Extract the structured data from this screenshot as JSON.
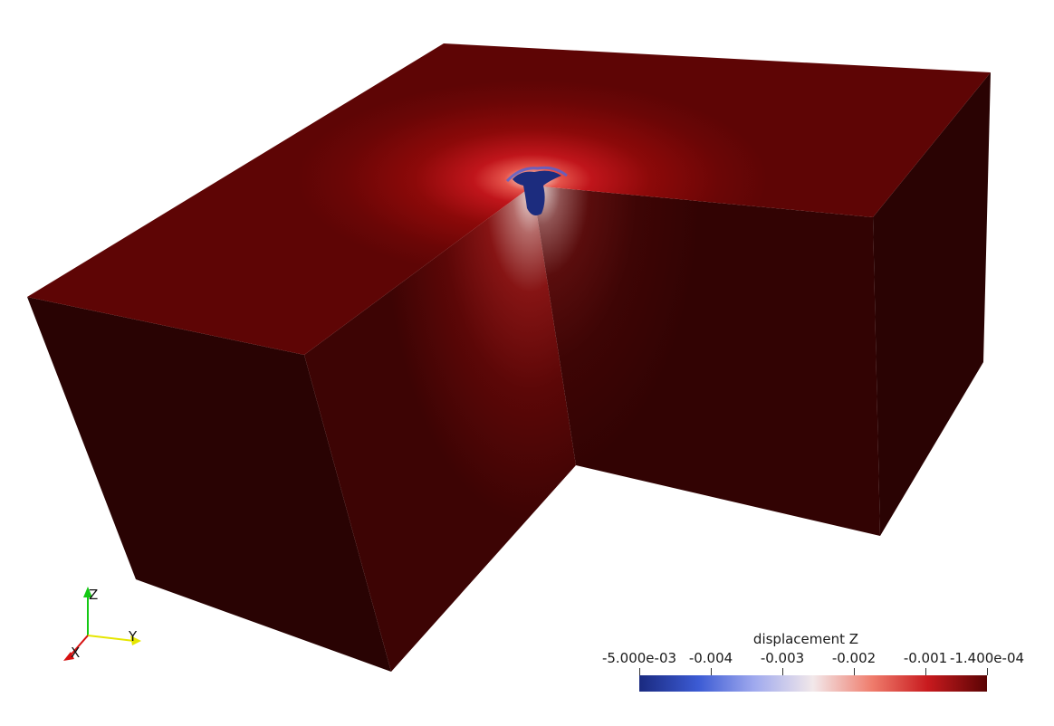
{
  "colorbar": {
    "title": "displacement Z",
    "ticks": [
      {
        "label": "-5.000e-03",
        "value": -0.005
      },
      {
        "label": "-0.004",
        "value": -0.004
      },
      {
        "label": "-0.003",
        "value": -0.003
      },
      {
        "label": "-0.002",
        "value": -0.002
      },
      {
        "label": "-0.001",
        "value": -0.001
      },
      {
        "label": "-1.400e-04",
        "value": -0.00014
      }
    ],
    "range": [
      -0.005,
      -0.00014
    ],
    "colors": [
      "#1a2a80",
      "#3c5bd4",
      "#9fa9ee",
      "#f2e8ea",
      "#ef7c6c",
      "#c81a1e",
      "#5a0404"
    ]
  },
  "axes": {
    "z_label": "Z",
    "y_label": "Y",
    "x_label": "X",
    "z_color": "#14c814",
    "y_color": "#e6e600",
    "x_color": "#d61010"
  },
  "scene": {
    "top_face_color": "#5e0505",
    "side_dark_color": "#290303",
    "side_mid_color": "#3c0404"
  }
}
